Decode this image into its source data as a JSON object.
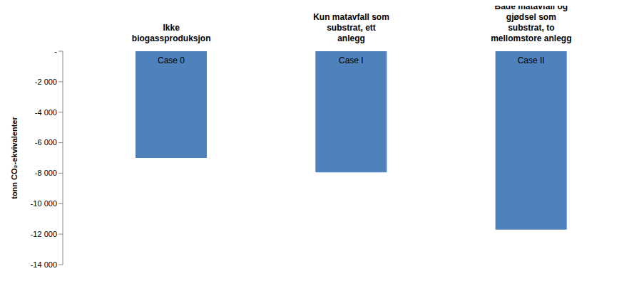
{
  "chart_data": {
    "type": "bar",
    "categories": [
      "Ikke biogassproduksjon",
      "Kun matavfall som substrat, ett anlegg",
      "Både matavfall og gjødsel som substrat, to mellomstore anlegg"
    ],
    "values": [
      -7000,
      -7950,
      -11700
    ],
    "annotations": [
      "Case 0",
      "Case I",
      "Case II"
    ],
    "color": "#4f81bd",
    "ylabel": "tonn CO₂-ekvivalenter",
    "ylim": [
      -14000,
      0
    ],
    "yticks": [
      {
        "value": -14000,
        "label": "-14 000"
      },
      {
        "value": -12000,
        "label": "-12 000"
      },
      {
        "value": -10000,
        "label": "-10 000"
      },
      {
        "value": -8000,
        "label": "-8 000"
      },
      {
        "value": -6000,
        "label": "-6 000"
      },
      {
        "value": -4000,
        "label": "-4 000"
      },
      {
        "value": -2000,
        "label": "-2 000"
      },
      {
        "value": 0,
        "label": "-"
      }
    ],
    "grid": false
  }
}
